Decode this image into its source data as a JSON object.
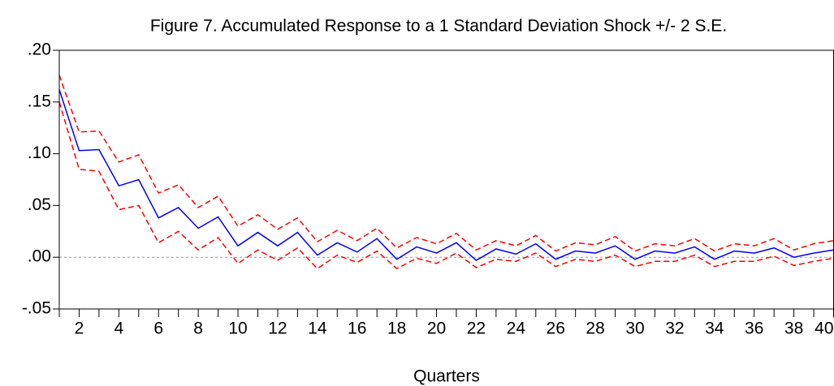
{
  "chart_data": {
    "type": "line",
    "title": "Figure 7. Accumulated Response to a 1 Standard Deviation Shock  +/- 2 S.E.",
    "x_label": "Quarters",
    "x": [
      1,
      2,
      3,
      4,
      5,
      6,
      7,
      8,
      9,
      10,
      11,
      12,
      13,
      14,
      15,
      16,
      17,
      18,
      19,
      20,
      21,
      22,
      23,
      24,
      25,
      26,
      27,
      28,
      29,
      30,
      31,
      32,
      33,
      34,
      35,
      36,
      37,
      38,
      39,
      40
    ],
    "xlim": [
      1,
      40
    ],
    "xticks": [
      2,
      4,
      6,
      8,
      10,
      12,
      14,
      16,
      18,
      20,
      22,
      24,
      26,
      28,
      30,
      32,
      34,
      36,
      38,
      40
    ],
    "ylim": [
      -0.05,
      0.2
    ],
    "yticks": [
      {
        "value": -0.05,
        "label": "-.05"
      },
      {
        "value": 0,
        "label": ".00"
      },
      {
        "value": 0.05,
        "label": ".05"
      },
      {
        "value": 0.1,
        "label": ".10"
      },
      {
        "value": 0.15,
        "label": ".15"
      },
      {
        "value": 0.2,
        "label": ".20"
      }
    ],
    "zero_line": true,
    "series": [
      {
        "color": "#0000ff",
        "dashed": false,
        "values": [
          0.162,
          0.103,
          0.104,
          0.069,
          0.075,
          0.038,
          0.048,
          0.028,
          0.039,
          0.011,
          0.024,
          0.011,
          0.024,
          0.002,
          0.014,
          0.005,
          0.018,
          -0.002,
          0.01,
          0.004,
          0.014,
          -0.003,
          0.008,
          0.003,
          0.013,
          -0.002,
          0.006,
          0.004,
          0.011,
          -0.002,
          0.006,
          0.004,
          0.01,
          -0.002,
          0.006,
          0.004,
          0.009,
          0.0,
          0.004,
          0.007
        ]
      },
      {
        "color": "#ff0000",
        "dashed": true,
        "values": [
          0.176,
          0.121,
          0.122,
          0.092,
          0.099,
          0.062,
          0.07,
          0.048,
          0.059,
          0.03,
          0.041,
          0.027,
          0.038,
          0.015,
          0.026,
          0.016,
          0.028,
          0.009,
          0.019,
          0.013,
          0.023,
          0.007,
          0.016,
          0.011,
          0.021,
          0.006,
          0.014,
          0.012,
          0.02,
          0.006,
          0.013,
          0.011,
          0.018,
          0.006,
          0.013,
          0.011,
          0.018,
          0.007,
          0.013,
          0.016
        ]
      },
      {
        "color": "#ff0000",
        "dashed": true,
        "values": [
          0.15,
          0.085,
          0.083,
          0.046,
          0.05,
          0.014,
          0.025,
          0.007,
          0.019,
          -0.006,
          0.007,
          -0.003,
          0.009,
          -0.011,
          0.002,
          -0.005,
          0.006,
          -0.011,
          -0.001,
          -0.006,
          0.004,
          -0.01,
          -0.002,
          -0.004,
          0.004,
          -0.009,
          -0.002,
          -0.004,
          0.002,
          -0.009,
          -0.004,
          -0.004,
          0.002,
          -0.009,
          -0.004,
          -0.004,
          0.001,
          -0.008,
          -0.004,
          -0.001
        ]
      }
    ]
  }
}
